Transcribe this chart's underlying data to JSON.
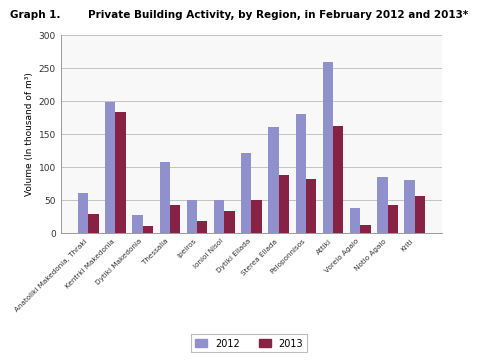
{
  "title_left": "Graph 1.",
  "title_right": "Private Building Activity, by Region, in February 2012 and 2013*",
  "ylabel": "Volume (In thousand of m³)",
  "categories": [
    "Anatoliki Makedonia, Thraki",
    "Kentrki Makedonia",
    "Dytiki Makedonia",
    "Thessalia",
    "Ipeiros",
    "Ionioi Nisoi",
    "Dytiki Ellada",
    "Sterea Ellada",
    "Peloponnisos",
    "Attiki",
    "Voreio Agaio",
    "Notio Agaio",
    "Kriti"
  ],
  "values_2012": [
    60,
    198,
    27,
    107,
    50,
    50,
    120,
    160,
    180,
    258,
    38,
    85,
    80
  ],
  "values_2013": [
    28,
    183,
    10,
    42,
    18,
    33,
    50,
    88,
    82,
    162,
    12,
    42,
    55
  ],
  "color_2012": "#9090cc",
  "color_2013": "#882244",
  "ylim": [
    0,
    300
  ],
  "yticks": [
    0,
    50,
    100,
    150,
    200,
    250,
    300
  ],
  "legend_labels": [
    "2012",
    "2013"
  ],
  "bar_width": 0.38
}
